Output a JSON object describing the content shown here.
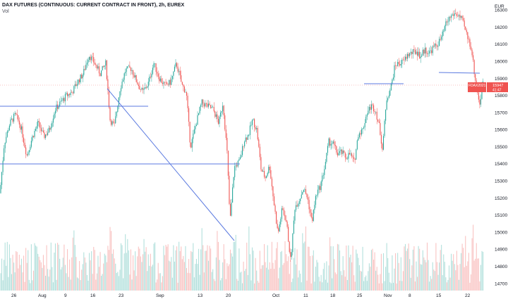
{
  "header": {
    "symbol": "DAX FUTURES (CONTINUOUS: CURRENT CONTRACT IN FRONT), 2h, EUREX",
    "indicator": "Vol"
  },
  "currency": "EUR",
  "price_tag": {
    "symbol": "FDAX2021",
    "last": "15947",
    "time": "41:47"
  },
  "chart_data": {
    "type": "candlestick",
    "x_ticks": [
      "26",
      "Aug",
      "9",
      "16",
      "23",
      "Sep",
      "13",
      "20",
      "Oct",
      "11",
      "18",
      "25",
      "Nov",
      "8",
      "15",
      "22"
    ],
    "y_ticks": [
      16300,
      16200,
      16100,
      16000,
      15900,
      15800,
      15700,
      15600,
      15500,
      15400,
      15300,
      15200,
      15100,
      15000,
      14900,
      14800,
      14700
    ],
    "ylim": [
      14660,
      16360
    ],
    "last_price": 15947,
    "colors": {
      "up": "#26a69a",
      "down": "#ef5350",
      "line": "#5b7ae0"
    }
  }
}
